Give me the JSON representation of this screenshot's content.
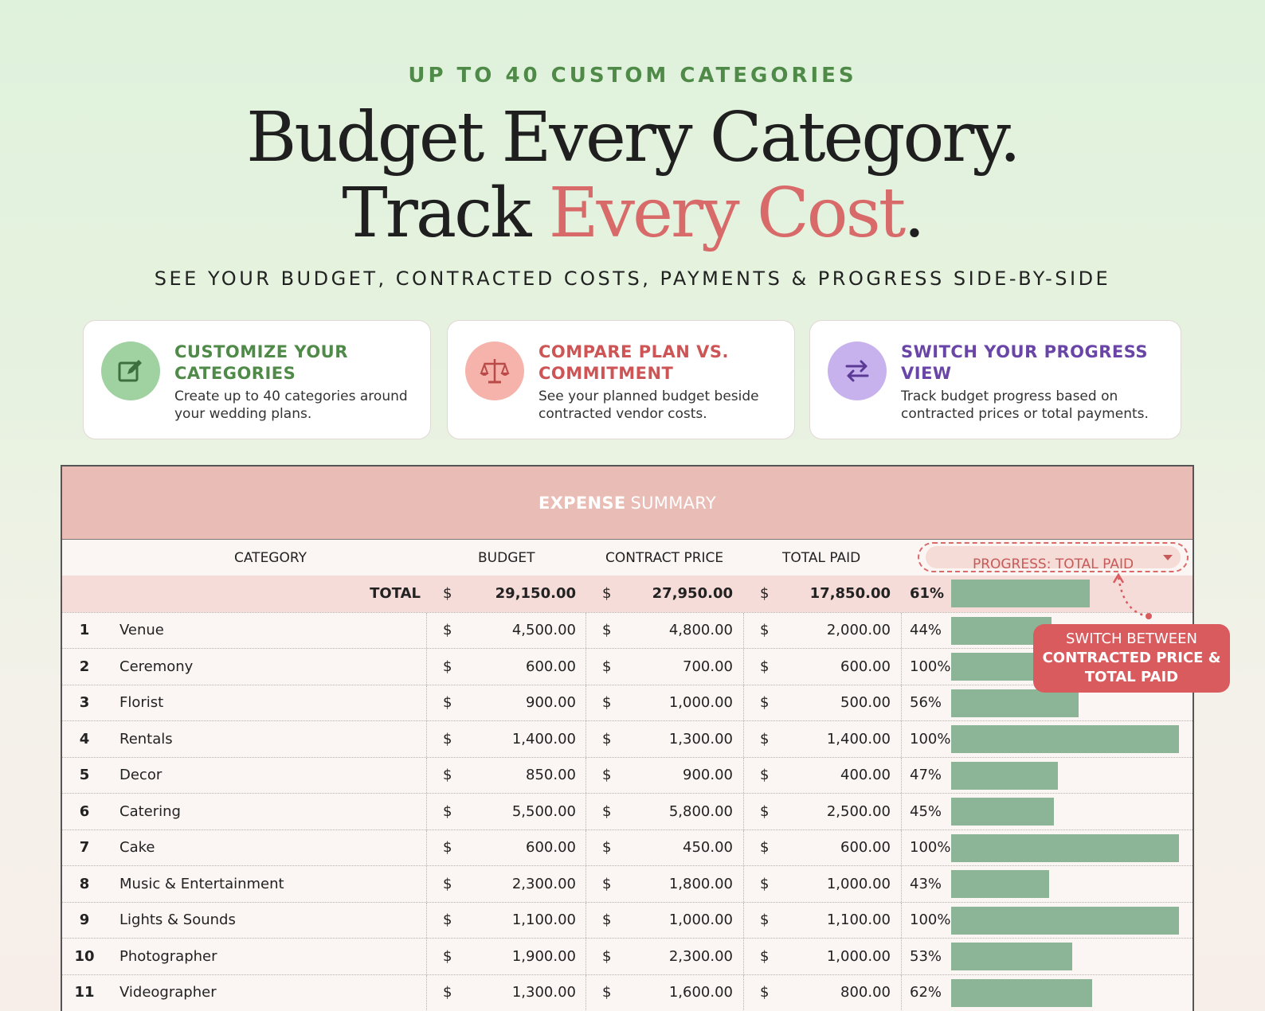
{
  "hero": {
    "eyebrow": "UP TO 40 CUSTOM CATEGORIES",
    "line1": "Budget Every Category.",
    "line2_prefix": "Track ",
    "line2_accent": "Every Cost",
    "line2_suffix": ".",
    "subtitle": "SEE YOUR BUDGET, CONTRACTED COSTS, PAYMENTS & PROGRESS SIDE-BY-SIDE"
  },
  "features": [
    {
      "title": "CUSTOMIZE YOUR CATEGORIES",
      "desc": "Create up to 40 categories around your wedding plans.",
      "icon": "edit-icon"
    },
    {
      "title": "COMPARE PLAN VS. COMMITMENT",
      "desc": "See your planned budget beside contracted vendor costs.",
      "icon": "scale-icon"
    },
    {
      "title": "SWITCH YOUR PROGRESS VIEW",
      "desc": "Track budget progress based on contracted prices or total payments.",
      "icon": "swap-arrows-icon"
    }
  ],
  "colors": {
    "green": "#4f8a49",
    "red": "#d86a6a",
    "purple": "#6a45a8",
    "bar": "#8cb597",
    "header": "#eabcb6"
  },
  "sheet": {
    "title_bold": "EXPENSE",
    "title_rest": "SUMMARY",
    "columns": {
      "category": "CATEGORY",
      "budget": "BUDGET",
      "contract": "CONTRACT PRICE",
      "paid": "TOTAL PAID"
    },
    "progress_selector": "PROGRESS: TOTAL PAID",
    "total": {
      "label": "TOTAL",
      "cur": "$",
      "budget": "29,150.00",
      "contract": "27,950.00",
      "paid": "17,850.00",
      "pct": "61%",
      "progress": 0.61
    },
    "rows": [
      {
        "n": "1",
        "name": "Venue",
        "budget": "4,500.00",
        "contract": "4,800.00",
        "paid": "2,000.00",
        "pct": "44%",
        "progress": 0.44
      },
      {
        "n": "2",
        "name": "Ceremony",
        "budget": "600.00",
        "contract": "700.00",
        "paid": "600.00",
        "pct": "100%",
        "progress": 1.0
      },
      {
        "n": "3",
        "name": "Florist",
        "budget": "900.00",
        "contract": "1,000.00",
        "paid": "500.00",
        "pct": "56%",
        "progress": 0.56
      },
      {
        "n": "4",
        "name": "Rentals",
        "budget": "1,400.00",
        "contract": "1,300.00",
        "paid": "1,400.00",
        "pct": "100%",
        "progress": 1.0
      },
      {
        "n": "5",
        "name": "Decor",
        "budget": "850.00",
        "contract": "900.00",
        "paid": "400.00",
        "pct": "47%",
        "progress": 0.47
      },
      {
        "n": "6",
        "name": "Catering",
        "budget": "5,500.00",
        "contract": "5,800.00",
        "paid": "2,500.00",
        "pct": "45%",
        "progress": 0.45
      },
      {
        "n": "7",
        "name": "Cake",
        "budget": "600.00",
        "contract": "450.00",
        "paid": "600.00",
        "pct": "100%",
        "progress": 1.0
      },
      {
        "n": "8",
        "name": "Music & Entertainment",
        "budget": "2,300.00",
        "contract": "1,800.00",
        "paid": "1,000.00",
        "pct": "43%",
        "progress": 0.43
      },
      {
        "n": "9",
        "name": "Lights & Sounds",
        "budget": "1,100.00",
        "contract": "1,000.00",
        "paid": "1,100.00",
        "pct": "100%",
        "progress": 1.0
      },
      {
        "n": "10",
        "name": "Photographer",
        "budget": "1,900.00",
        "contract": "2,300.00",
        "paid": "1,000.00",
        "pct": "53%",
        "progress": 0.53
      },
      {
        "n": "11",
        "name": "Videographer",
        "budget": "1,300.00",
        "contract": "1,600.00",
        "paid": "800.00",
        "pct": "62%",
        "progress": 0.62
      }
    ],
    "currency": "$"
  },
  "callout": {
    "line1": "SWITCH BETWEEN",
    "line2": "CONTRACTED PRICE &",
    "line3": "TOTAL PAID"
  }
}
